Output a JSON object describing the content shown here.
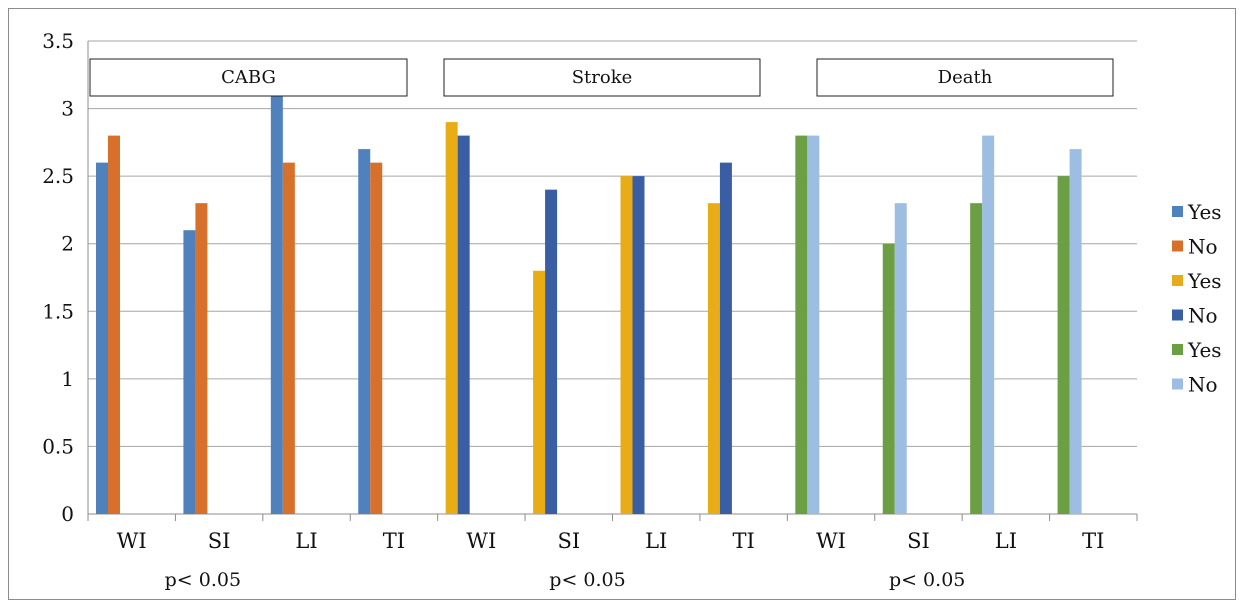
{
  "chart_data": {
    "type": "bar",
    "ylim": [
      0,
      3.5
    ],
    "yticks": [
      "0",
      "0.5",
      "1",
      "1.5",
      "2",
      "2.5",
      "3",
      "3.5"
    ],
    "grid": true,
    "legend_position": "right",
    "categories": [
      "WI",
      "SI",
      "LI",
      "TI",
      "WI",
      "SI",
      "LI",
      "TI",
      "WI",
      "SI",
      "LI",
      "TI"
    ],
    "groups": [
      {
        "label": "CABG",
        "p_value": "p< 0.05"
      },
      {
        "label": "Stroke",
        "p_value": "p< 0.05"
      },
      {
        "label": "Death",
        "p_value": "p< 0.05"
      }
    ],
    "series": [
      {
        "name": "Yes",
        "color": "#4f81bd",
        "values": [
          2.6,
          2.1,
          3.1,
          2.7,
          null,
          null,
          null,
          null,
          null,
          null,
          null,
          null
        ]
      },
      {
        "name": "No",
        "color": "#d7702b",
        "values": [
          2.8,
          2.3,
          2.6,
          2.6,
          null,
          null,
          null,
          null,
          null,
          null,
          null,
          null
        ]
      },
      {
        "name": "Yes",
        "color": "#e8ac17",
        "values": [
          null,
          null,
          null,
          null,
          2.9,
          1.8,
          2.5,
          2.3,
          null,
          null,
          null,
          null
        ]
      },
      {
        "name": "No",
        "color": "#3a5ea3",
        "values": [
          null,
          null,
          null,
          null,
          2.8,
          2.4,
          2.5,
          2.6,
          null,
          null,
          null,
          null
        ]
      },
      {
        "name": "Yes",
        "color": "#6c9e44",
        "values": [
          null,
          null,
          null,
          null,
          null,
          null,
          null,
          null,
          2.8,
          2.0,
          2.3,
          2.5
        ]
      },
      {
        "name": "No",
        "color": "#9dbde2",
        "values": [
          null,
          null,
          null,
          null,
          null,
          null,
          null,
          null,
          2.8,
          2.3,
          2.8,
          2.7
        ]
      }
    ]
  }
}
